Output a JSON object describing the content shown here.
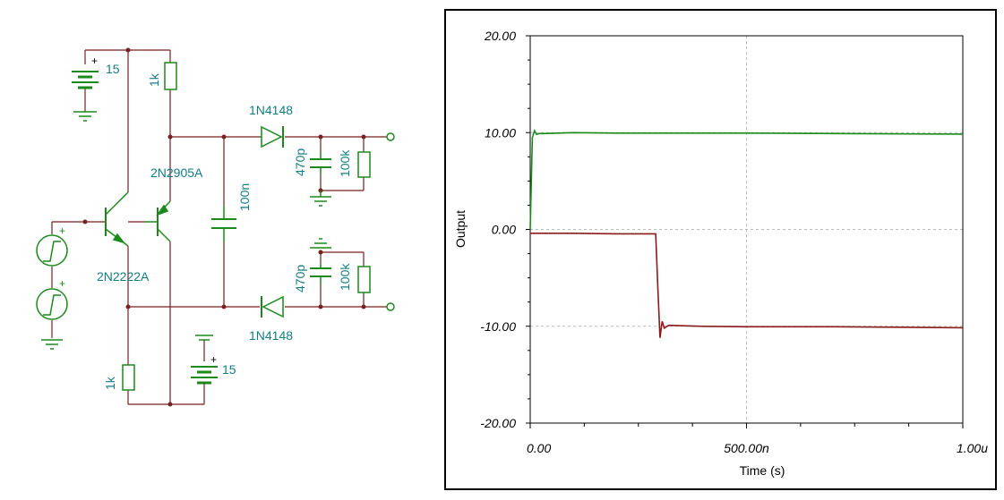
{
  "schematic": {
    "battery_top_label": "15",
    "battery_bottom_label": "15",
    "r_top_label": "1k",
    "r_bottom_label": "1k",
    "q_pnp_label": "2N2905A",
    "q_npn_label": "2N2222A",
    "diode_top_label": "1N4148",
    "diode_bottom_label": "1N4148",
    "cap_mid_label": "100n",
    "cap_top_label": "470p",
    "res_top_out_label": "100k",
    "cap_bot_label": "470p",
    "res_bot_out_label": "100k",
    "plus_sign": "+",
    "colors": {
      "wire": "#7a1f1f",
      "component": "#1a8a1a",
      "label": "#0f7f86"
    }
  },
  "chart_data": {
    "type": "line",
    "xlabel": "Time (s)",
    "ylabel": "Output",
    "x_ticks": [
      "0.00",
      "500.00n",
      "1.00u"
    ],
    "y_ticks": [
      "20.00",
      "10.00",
      "0.00",
      "-10.00",
      "-20.00"
    ],
    "xlim": [
      0,
      1e-06
    ],
    "ylim": [
      -20,
      20
    ],
    "grid": true,
    "series": [
      {
        "color": "#1a8a1a",
        "x": [
          0,
          5e-09,
          1e-08,
          1.5e-08,
          2e-08,
          3e-08,
          1e-07,
          2e-07,
          3e-07,
          5e-07,
          7e-07,
          1e-06
        ],
        "y": [
          0,
          9.5,
          10.2,
          9.8,
          9.9,
          9.9,
          10.0,
          9.95,
          9.95,
          9.95,
          9.9,
          9.85
        ]
      },
      {
        "color": "#8b1a1a",
        "x": [
          0,
          1e-07,
          2e-07,
          2.9e-07,
          2.95e-07,
          3e-07,
          3.05e-07,
          3.1e-07,
          3.2e-07,
          4e-07,
          5e-07,
          7e-07,
          8.5e-07,
          1e-06
        ],
        "y": [
          -0.4,
          -0.4,
          -0.45,
          -0.45,
          -6,
          -11.2,
          -9.5,
          -10.2,
          -9.9,
          -10.0,
          -10.05,
          -10.05,
          -10.1,
          -10.15
        ]
      }
    ]
  }
}
